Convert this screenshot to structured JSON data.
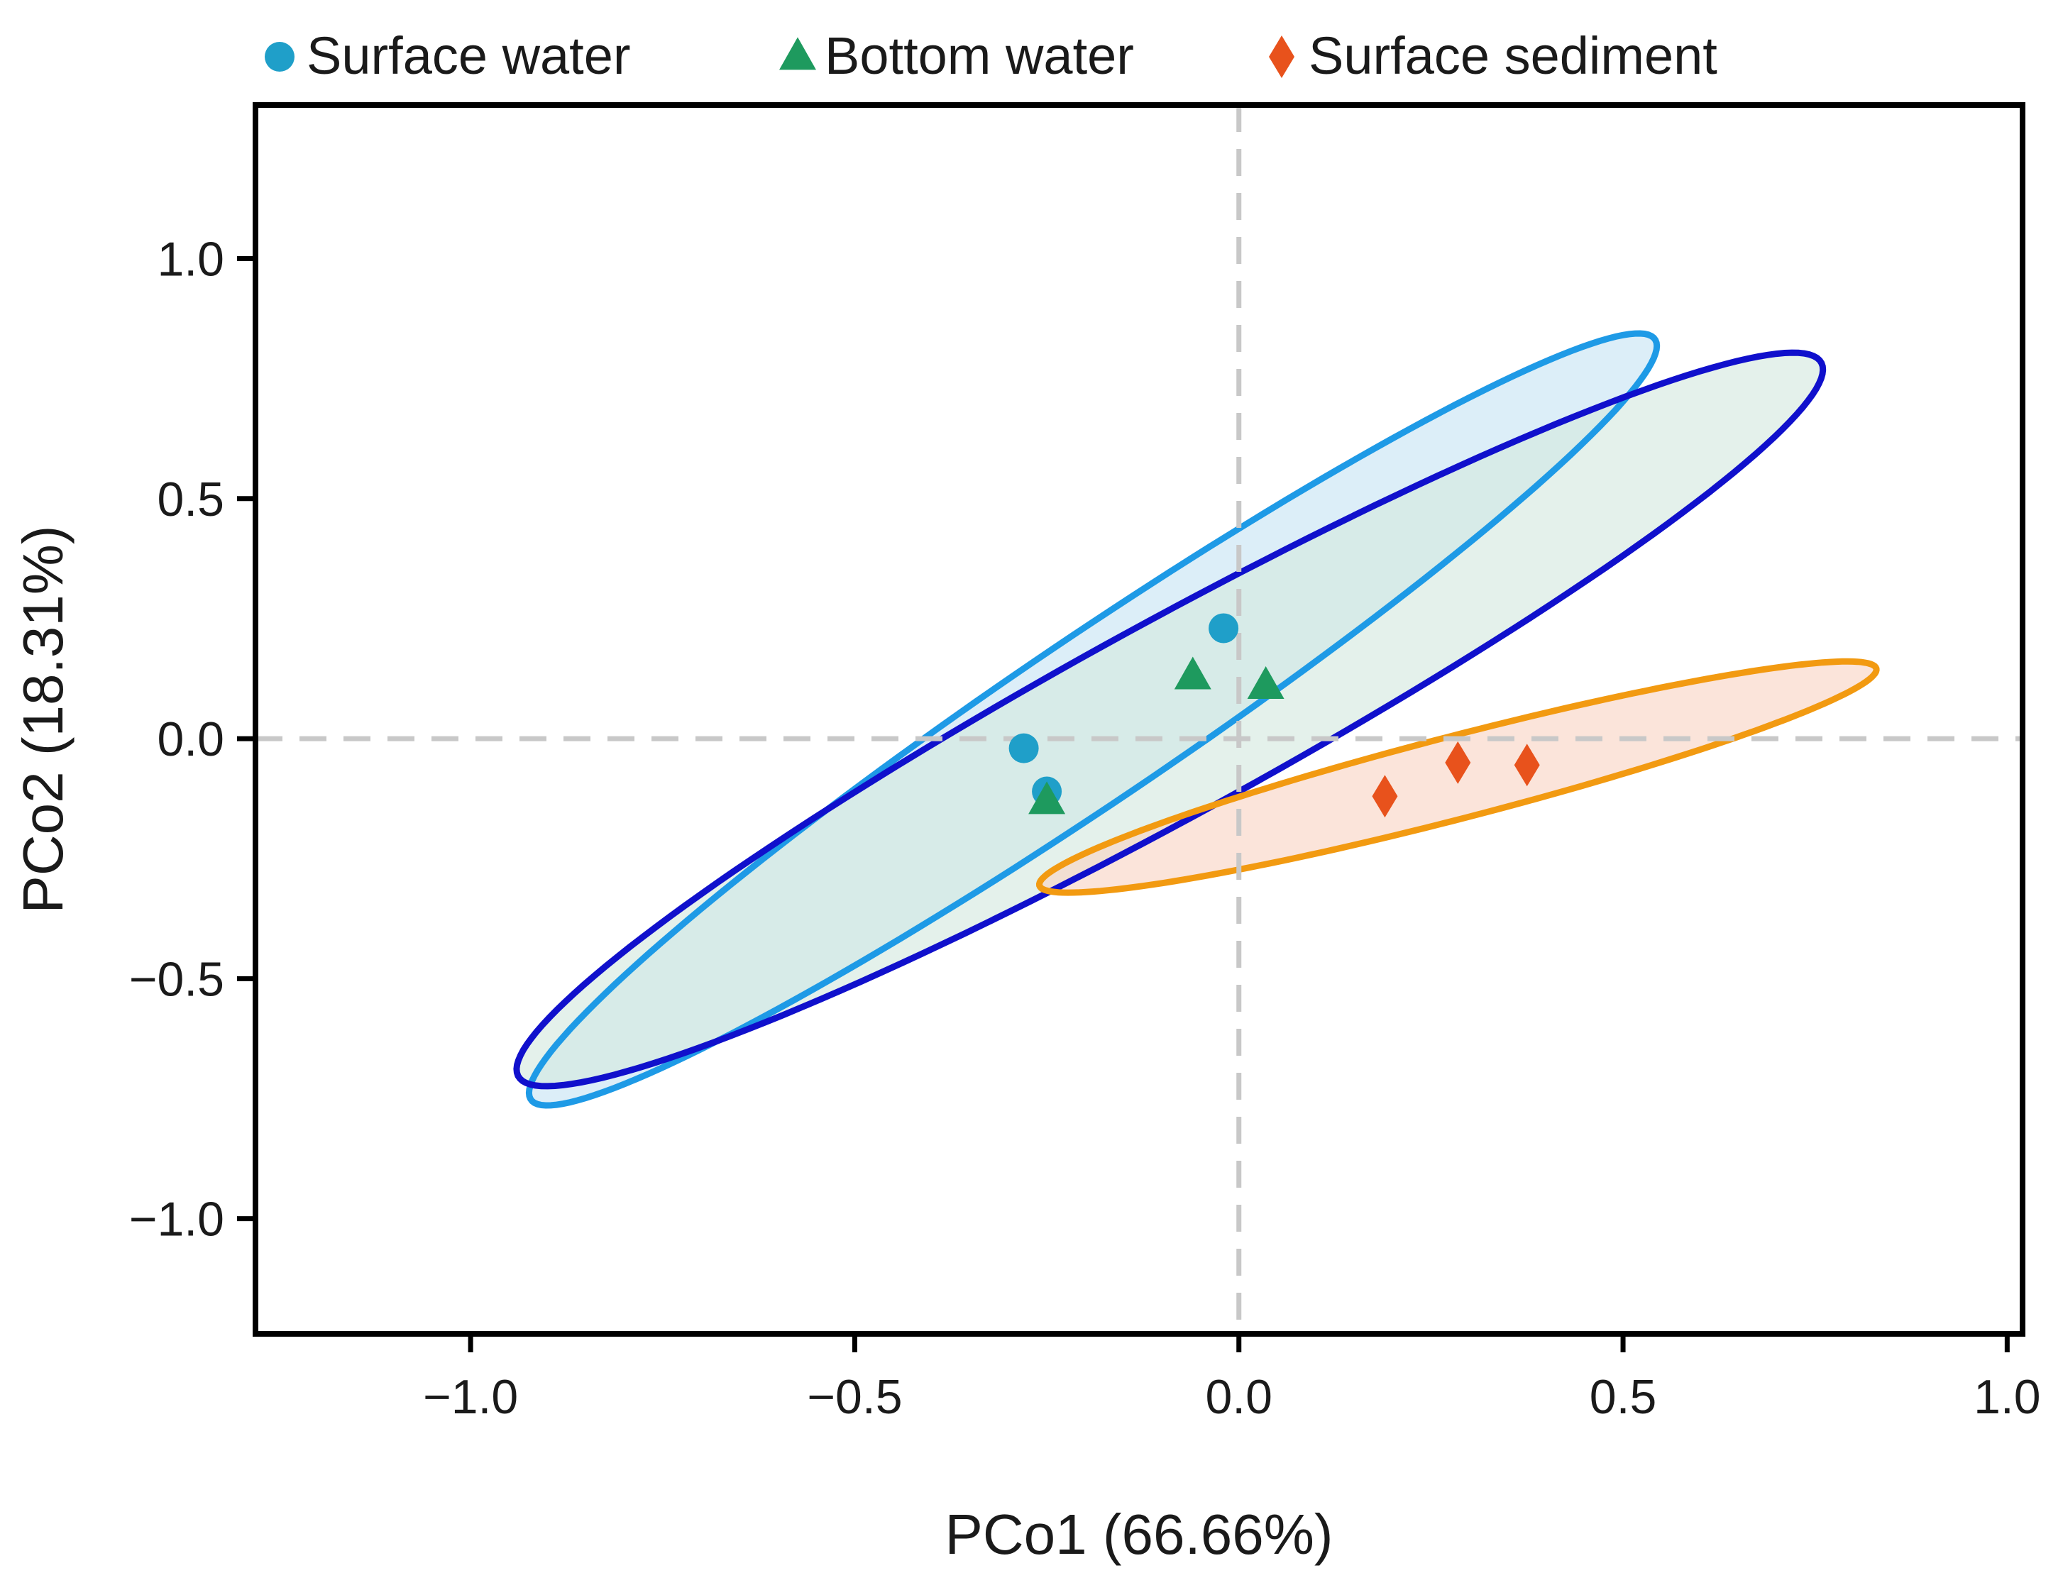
{
  "chart_data": {
    "type": "scatter",
    "xlabel": "PCo1 (66.66%)",
    "ylabel": "PCo2 (18.31%)",
    "xlim": [
      -1.28,
      1.02
    ],
    "ylim": [
      -1.24,
      1.32
    ],
    "xticks": [
      -1.0,
      -0.5,
      0.0,
      0.5,
      1.0
    ],
    "yticks": [
      -1.0,
      -0.5,
      0.0,
      0.5,
      1.0
    ],
    "xtick_labels": [
      "−1.0",
      "−0.5",
      "0.0",
      "0.5",
      "1.0"
    ],
    "ytick_labels": [
      "−1.0",
      "−0.5",
      "0.0",
      "0.5",
      "1.0"
    ],
    "reference_lines": {
      "x": 0.0,
      "y": 0.0,
      "style": "dashed",
      "color": "#c8c8c8"
    },
    "grid": false,
    "legend_position": "top",
    "series": [
      {
        "name": "Surface water",
        "marker": "circle",
        "color": "#1f9fc9",
        "x": [
          -0.02,
          -0.28,
          -0.25
        ],
        "y": [
          0.23,
          -0.02,
          -0.11
        ],
        "ellipse": {
          "center": [
            -0.19,
            0.04
          ],
          "semi_major": 1.08,
          "semi_minor": 0.138,
          "angle_deg": 47.7,
          "stroke": "#1e9ae6",
          "fill": "#c6e4f3"
        }
      },
      {
        "name": "Bottom water",
        "marker": "triangle",
        "color": "#1e9a5e",
        "x": [
          -0.06,
          0.035,
          -0.25
        ],
        "y": [
          0.13,
          0.11,
          -0.13
        ],
        "ellipse": {
          "center": [
            -0.09,
            0.04
          ],
          "semi_major": 1.13,
          "semi_minor": 0.172,
          "angle_deg": 41.8,
          "stroke": "#1010cc",
          "fill": "#d3e9df"
        }
      },
      {
        "name": "Surface sediment",
        "marker": "diamond",
        "color": "#e8521c",
        "x": [
          0.19,
          0.285,
          0.375
        ],
        "y": [
          -0.12,
          -0.05,
          -0.055
        ],
        "ellipse": {
          "center": [
            0.285,
            -0.08
          ],
          "semi_major": 0.59,
          "semi_minor": 0.082,
          "angle_deg": 22.8,
          "stroke": "#f29a11",
          "fill": "#f9d3c3"
        }
      }
    ]
  }
}
